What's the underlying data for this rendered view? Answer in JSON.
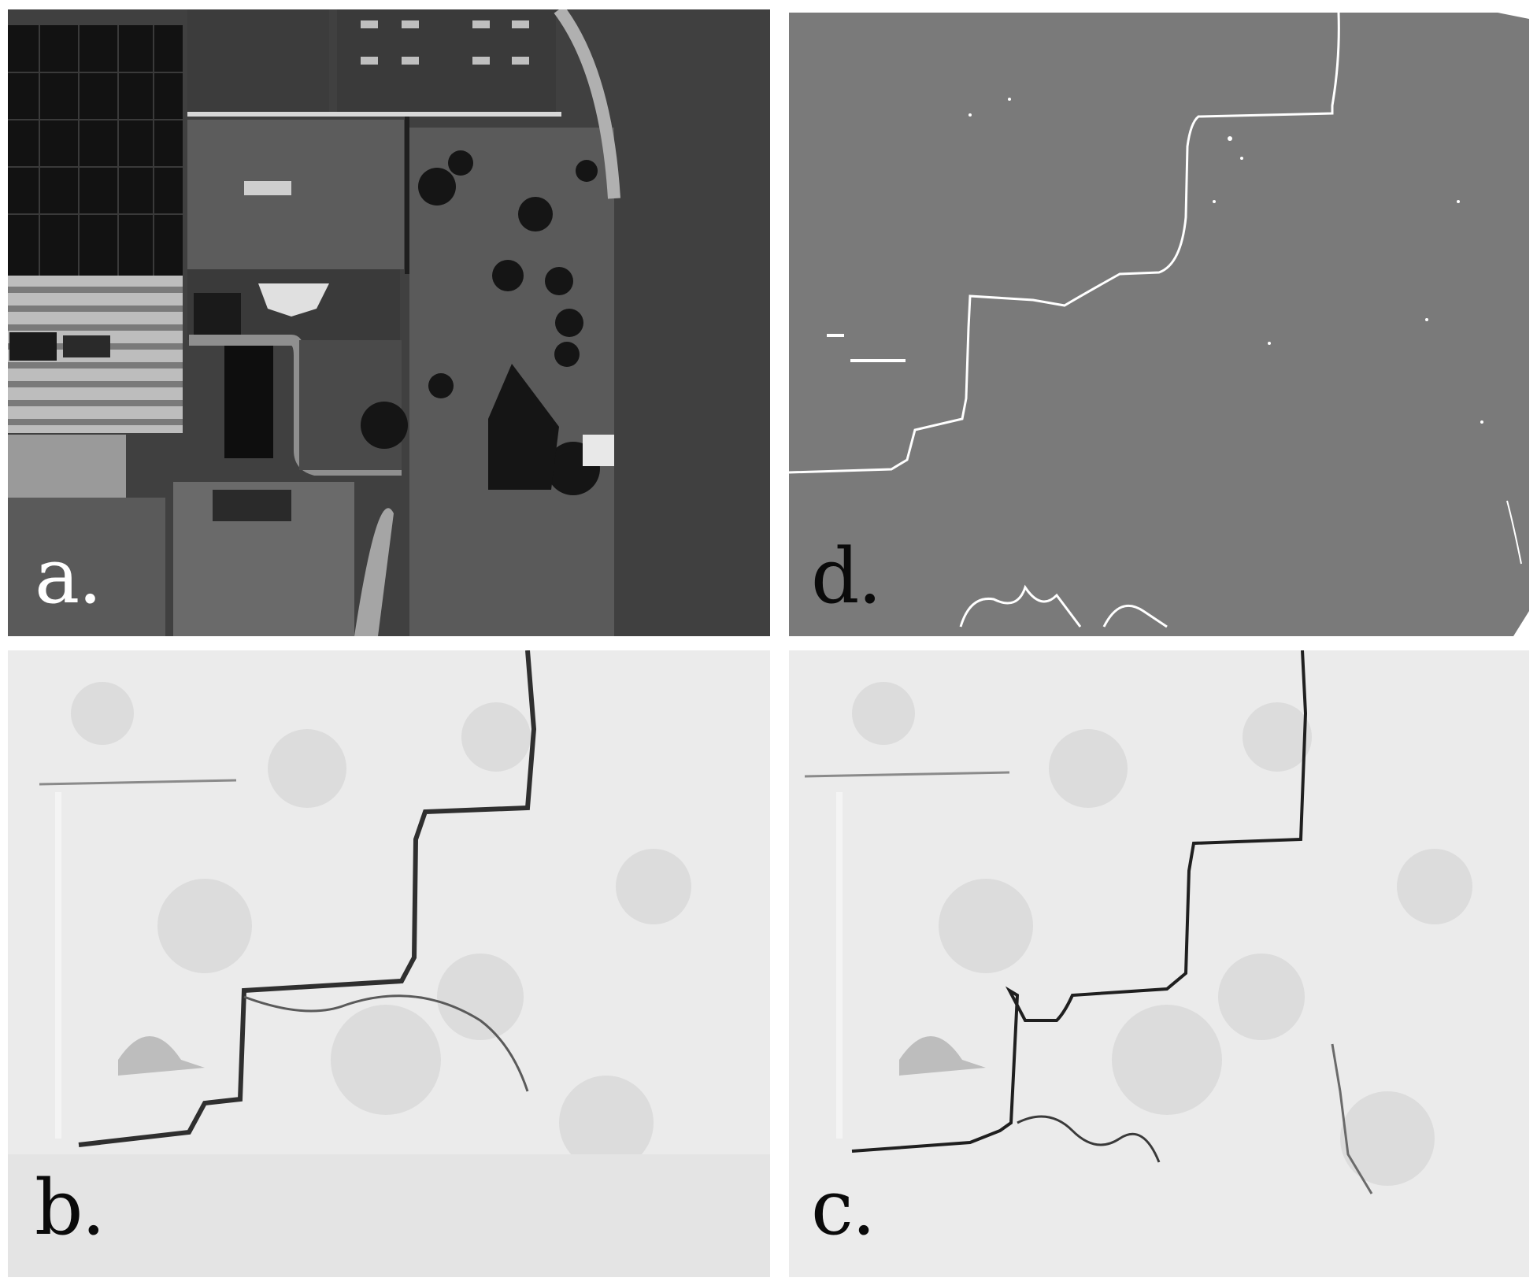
{
  "panels": [
    {
      "id": "a",
      "label": "a.",
      "content": "aerial-photograph",
      "label_color": "#ffffff"
    },
    {
      "id": "d",
      "label": "d.",
      "content": "difference-map",
      "label_color": "#0a0a0a"
    },
    {
      "id": "b",
      "label": "b.",
      "content": "hillshade-relief",
      "label_color": "#0a0a0a"
    },
    {
      "id": "c",
      "label": "c.",
      "content": "hillshade-relief-refined",
      "label_color": "#0a0a0a"
    }
  ],
  "colors": {
    "background": "#ffffff",
    "photo_dark": "#1c1c1c",
    "photo_mid": "#4a4a4a",
    "difference_gray": "#7a7a7a",
    "hillshade_light": "#e9e9e9",
    "edge_dark": "#2a2a2a"
  }
}
